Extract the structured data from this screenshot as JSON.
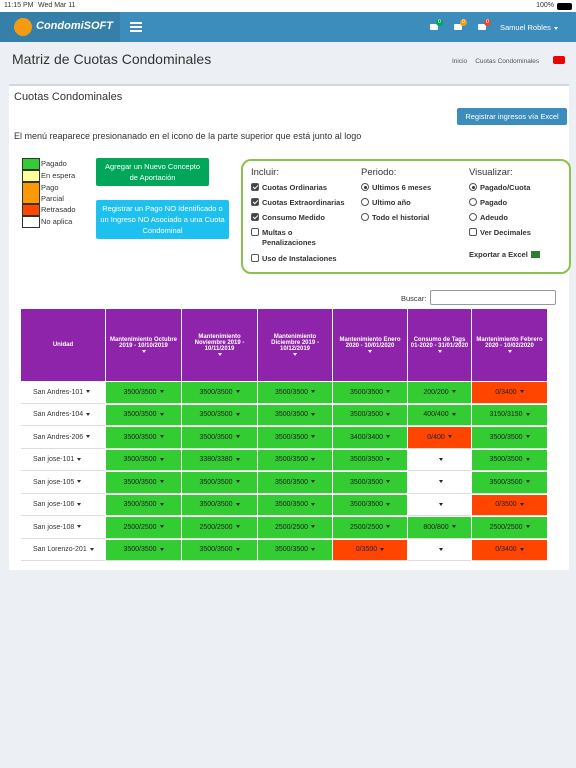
{
  "status_bar": {
    "time": "11:15 PM",
    "date": "Wed Mar 11",
    "battery": "100%"
  },
  "navbar": {
    "brand": "CondomiSOFT",
    "badges": [
      {
        "text": "0",
        "color": "#00a65a"
      },
      {
        "text": "0",
        "color": "#f39c12"
      },
      {
        "text": "0",
        "color": "#dd4b39"
      }
    ],
    "user": "Samuel Robles"
  },
  "page_header": {
    "title": "Matriz de Cuotas Condominales",
    "breadcrumb": [
      "Inicio",
      "Cuotas Condominales"
    ]
  },
  "panel": {
    "title": "Cuotas Condominales",
    "excel_button": "Registrar ingresos vía Excel",
    "info": "El menú reaparece presionanado en el icono de la parte superior que está junto al logo",
    "legend": [
      {
        "label": "Pagado",
        "color": "#33cc33"
      },
      {
        "label": "En espera",
        "color": "#ffff99"
      },
      {
        "label": "Pago Parcial",
        "color": "#ff9900"
      },
      {
        "label": "Retrasado",
        "color": "#ff4500"
      },
      {
        "label": "No aplica",
        "color": "#ffffff"
      }
    ],
    "buttons": [
      {
        "label": "Agregar un Nuevo Concepto de Aportación",
        "color": "#00a65a"
      },
      {
        "label": "Registrar un Pago NO Identificado o un Ingreso NO Asociado a una Cuota Condominal",
        "color": "#1ec0ef"
      }
    ],
    "filters": {
      "incluir": {
        "title": "Incluir:",
        "options": [
          {
            "label": "Cuotas Ordinarias",
            "checked": true
          },
          {
            "label": "Cuotas Extraordinarias",
            "checked": true
          },
          {
            "label": "Consumo Medido",
            "checked": true
          },
          {
            "label": "Multas o Penalizaciones",
            "checked": false
          },
          {
            "label": "Uso de Instalaciones",
            "checked": false
          }
        ]
      },
      "periodo": {
        "title": "Periodo:",
        "options": [
          {
            "label": "Ultimos 6 meses",
            "selected": true
          },
          {
            "label": "Ultimo año",
            "selected": false
          },
          {
            "label": "Todo el historial",
            "selected": false
          }
        ]
      },
      "visualizar": {
        "title": "Visualizar:",
        "options": [
          {
            "label": "Pagado/Cuota",
            "selected": true
          },
          {
            "label": "Pagado",
            "selected": false
          },
          {
            "label": "Adeudo",
            "selected": false
          },
          {
            "label": "Ver Decimales",
            "checked": false
          }
        ],
        "export": "Exportar a Excel"
      }
    },
    "search_label": "Buscar:",
    "table": {
      "header": [
        "Unidad",
        "Mantenimiento Octubre 2019 - 10/10/2019",
        "Mantenimiento Noviembre 2019 - 10/11/2019",
        "Mantenimiento Diciembre 2019 - 10/12/2019",
        "Mantenimiento Enero 2020 - 10/01/2020",
        "Consumo de Tags 01-2020 - 31/01/2020",
        "Mantenimiento Febrero 2020 - 10/02/2020"
      ],
      "rows": [
        {
          "unit": "San Andres-101",
          "cells": [
            {
              "text": "3500/3500",
              "color": "#33cc33"
            },
            {
              "text": "3500/3500",
              "color": "#33cc33"
            },
            {
              "text": "3500/3500",
              "color": "#33cc33"
            },
            {
              "text": "3500/3500",
              "color": "#33cc33"
            },
            {
              "text": "200/200",
              "color": "#33cc33"
            },
            {
              "text": "0/3400",
              "color": "#ff4500"
            }
          ]
        },
        {
          "unit": "San Andres-104",
          "cells": [
            {
              "text": "3500/3500",
              "color": "#33cc33"
            },
            {
              "text": "3500/3500",
              "color": "#33cc33"
            },
            {
              "text": "3500/3500",
              "color": "#33cc33"
            },
            {
              "text": "3500/3500",
              "color": "#33cc33"
            },
            {
              "text": "400/400",
              "color": "#33cc33"
            },
            {
              "text": "3150/3150",
              "color": "#33cc33"
            }
          ]
        },
        {
          "unit": "San Andres-206",
          "cells": [
            {
              "text": "3500/3500",
              "color": "#33cc33"
            },
            {
              "text": "3500/3500",
              "color": "#33cc33"
            },
            {
              "text": "3500/3500",
              "color": "#33cc33"
            },
            {
              "text": "3400/3400",
              "color": "#33cc33"
            },
            {
              "text": "0/400",
              "color": "#ff4500"
            },
            {
              "text": "3500/3500",
              "color": "#33cc33"
            }
          ]
        },
        {
          "unit": "San jose-101",
          "cells": [
            {
              "text": "3500/3500",
              "color": "#33cc33"
            },
            {
              "text": "3380/3380",
              "color": "#33cc33"
            },
            {
              "text": "3500/3500",
              "color": "#33cc33"
            },
            {
              "text": "3500/3500",
              "color": "#33cc33"
            },
            {
              "text": null,
              "color": "#ffffff"
            },
            {
              "text": "3500/3500",
              "color": "#33cc33"
            }
          ]
        },
        {
          "unit": "San jose-105",
          "cells": [
            {
              "text": "3500/3500",
              "color": "#33cc33"
            },
            {
              "text": "3500/3500",
              "color": "#33cc33"
            },
            {
              "text": "3500/3500",
              "color": "#33cc33"
            },
            {
              "text": "3500/3500",
              "color": "#33cc33"
            },
            {
              "text": null,
              "color": "#ffffff"
            },
            {
              "text": "3500/3500",
              "color": "#33cc33"
            }
          ]
        },
        {
          "unit": "San jose-106",
          "cells": [
            {
              "text": "3500/3500",
              "color": "#33cc33"
            },
            {
              "text": "3500/3500",
              "color": "#33cc33"
            },
            {
              "text": "3500/3500",
              "color": "#33cc33"
            },
            {
              "text": "3500/3500",
              "color": "#33cc33"
            },
            {
              "text": null,
              "color": "#ffffff"
            },
            {
              "text": "0/3500",
              "color": "#ff4500"
            }
          ]
        },
        {
          "unit": "San jose-108",
          "cells": [
            {
              "text": "2500/2500",
              "color": "#33cc33"
            },
            {
              "text": "2500/2500",
              "color": "#33cc33"
            },
            {
              "text": "2500/2500",
              "color": "#33cc33"
            },
            {
              "text": "2500/2500",
              "color": "#33cc33"
            },
            {
              "text": "800/800",
              "color": "#33cc33"
            },
            {
              "text": "2500/2500",
              "color": "#33cc33"
            }
          ]
        },
        {
          "unit": "San Lorenzo-201",
          "cells": [
            {
              "text": "3500/3500",
              "color": "#33cc33"
            },
            {
              "text": "3500/3500",
              "color": "#33cc33"
            },
            {
              "text": "3500/3500",
              "color": "#33cc33"
            },
            {
              "text": "0/3500",
              "color": "#ff4500"
            },
            {
              "text": null,
              "color": "#ffffff"
            },
            {
              "text": "0/3400",
              "color": "#ff4500"
            }
          ]
        }
      ]
    }
  }
}
